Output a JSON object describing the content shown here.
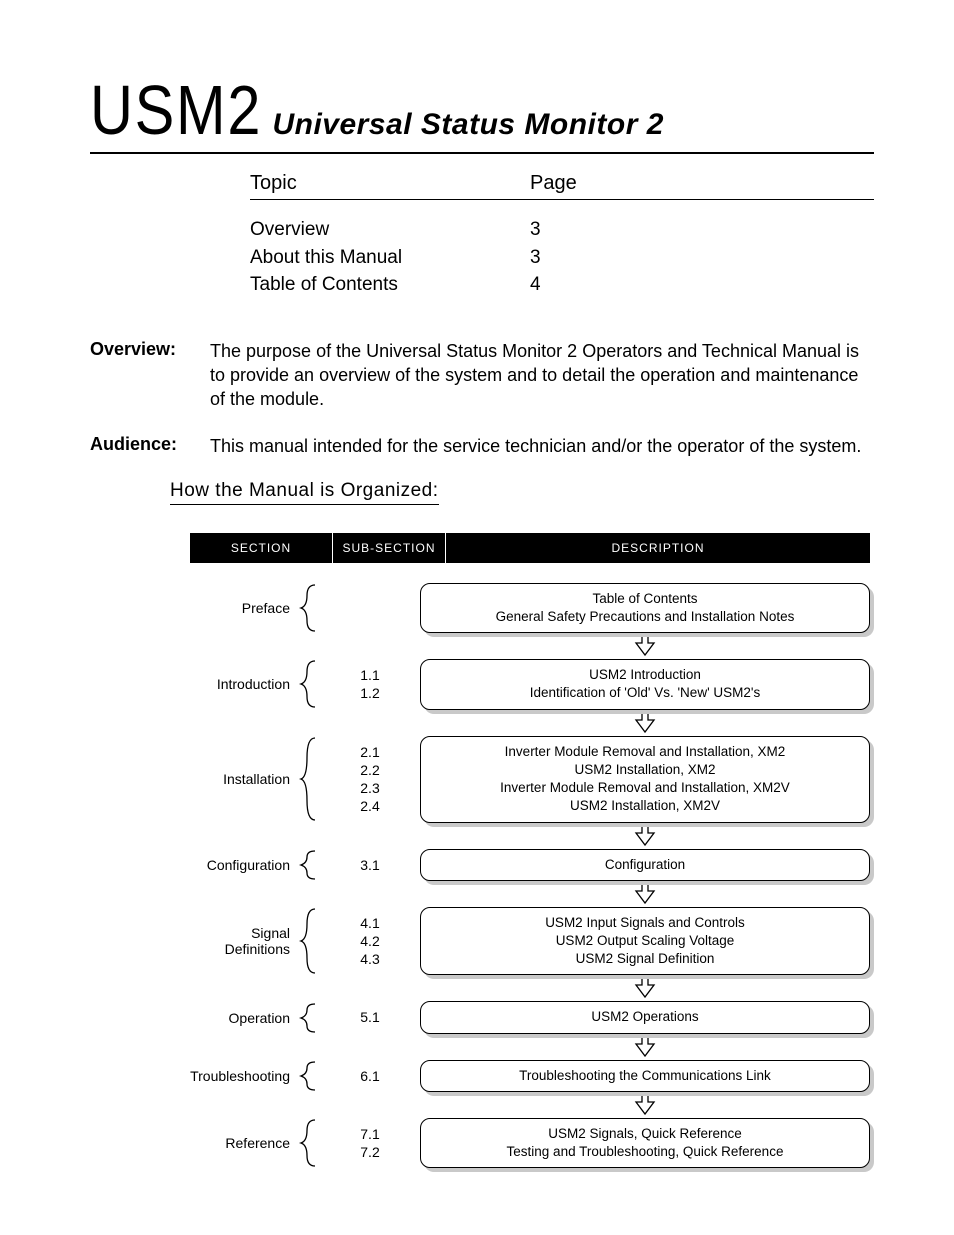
{
  "title": {
    "main": "USM2",
    "sub": "Universal Status Monitor 2"
  },
  "toc": {
    "head_topic": "Topic",
    "head_page": "Page",
    "rows": [
      {
        "topic": "Overview",
        "page": "3"
      },
      {
        "topic": "About this Manual",
        "page": "3"
      },
      {
        "topic": "Table of Contents",
        "page": "4"
      }
    ]
  },
  "paras": {
    "overview_label": "Overview:",
    "overview_text": "The purpose of the Universal Status Monitor 2 Operators and Technical Manual is to provide an overview of the system and to detail the operation and maintenance of the module.",
    "audience_label": "Audience:",
    "audience_text": "This manual intended for the service technician and/or the operator of the system.",
    "org_heading": "How the Manual is Organized:"
  },
  "chart": {
    "head_section": "SECTION",
    "head_sub": "SUB-SECTION",
    "head_desc": "DESCRIPTION",
    "header_bg": "#000000",
    "header_fg": "#ffffff",
    "box_border": "#000000",
    "box_bg": "#ffffff",
    "shadow": "#c9c9c9",
    "rows": [
      {
        "section": "Preface",
        "subs": [],
        "desc": [
          "Table of Contents",
          "General Safety Precautions and Installation Notes"
        ]
      },
      {
        "section": "Introduction",
        "subs": [
          "1.1",
          "1.2"
        ],
        "desc": [
          "USM2 Introduction",
          "Identification of 'Old' Vs. 'New' USM2's"
        ]
      },
      {
        "section": "Installation",
        "subs": [
          "2.1",
          "2.2",
          "2.3",
          "2.4"
        ],
        "desc": [
          "Inverter Module Removal and Installation, XM2",
          "USM2 Installation, XM2",
          "Inverter Module Removal and Installation, XM2V",
          "USM2 Installation, XM2V"
        ]
      },
      {
        "section": "Configuration",
        "subs": [
          "3.1"
        ],
        "desc": [
          "Configuration"
        ]
      },
      {
        "section": "Signal\nDefinitions",
        "subs": [
          "4.1",
          "4.2",
          "4.3"
        ],
        "desc": [
          "USM2 Input Signals and Controls",
          "USM2 Output Scaling Voltage",
          "USM2 Signal Definition"
        ]
      },
      {
        "section": "Operation",
        "subs": [
          "5.1"
        ],
        "desc": [
          "USM2 Operations"
        ]
      },
      {
        "section": "Troubleshooting",
        "subs": [
          "6.1"
        ],
        "desc": [
          "Troubleshooting the Communications Link"
        ]
      },
      {
        "section": "Reference",
        "subs": [
          "7.1",
          "7.2"
        ],
        "desc": [
          "USM2 Signals, Quick Reference",
          "Testing and Troubleshooting, Quick Reference"
        ]
      }
    ]
  }
}
